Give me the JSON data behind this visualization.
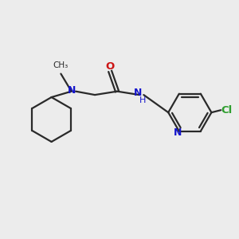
{
  "background_color": "#ececec",
  "bond_color": "#2a2a2a",
  "N_color": "#1515cc",
  "O_color": "#cc1515",
  "Cl_color": "#2e9e2e",
  "figsize": [
    3.0,
    3.0
  ],
  "dpi": 100,
  "xlim": [
    0,
    10
  ],
  "ylim": [
    0,
    10
  ]
}
